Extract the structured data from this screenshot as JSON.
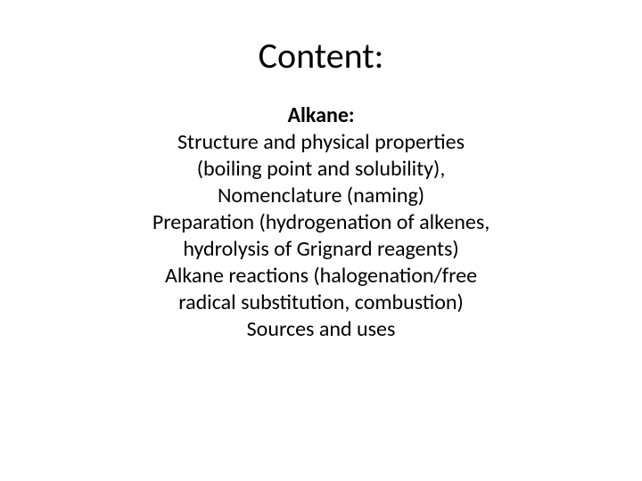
{
  "slide": {
    "title": "Content:",
    "subtitle": "Alkane:",
    "lines": [
      "Structure and physical properties",
      "(boiling point and solubility),",
      "Nomenclature (naming)",
      "Preparation (hydrogenation of alkenes,",
      "hydrolysis of Grignard reagents)",
      "Alkane reactions (halogenation/free",
      "radical substitution, combustion)",
      "Sources and uses"
    ],
    "colors": {
      "background": "#ffffff",
      "text": "#000000"
    },
    "typography": {
      "title_fontsize": 40,
      "title_fontweight": 400,
      "subtitle_fontsize": 24,
      "subtitle_fontweight": 700,
      "body_fontsize": 24,
      "body_fontweight": 400,
      "font_family": "Calibri"
    }
  }
}
